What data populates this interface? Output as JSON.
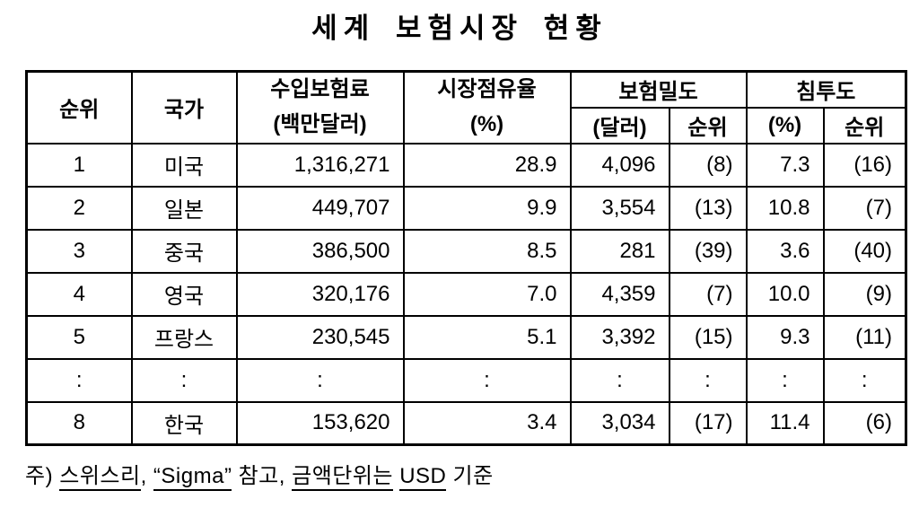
{
  "title": "세계 보험시장 현황",
  "table": {
    "headers": {
      "rank": "순위",
      "country": "국가",
      "premium_line1": "수입보험료",
      "premium_line2": "(백만달러)",
      "share_line1": "시장점유율",
      "share_line2": "(%)",
      "density_group": "보험밀도",
      "density_unit": "(달러)",
      "density_rank": "순위",
      "penetration_group": "침투도",
      "penetration_unit": "(%)",
      "penetration_rank": "순위"
    },
    "rows": [
      {
        "rank": "1",
        "country": "미국",
        "premium": "1,316,271",
        "share": "28.9",
        "density": "4,096",
        "density_rank": "(8)",
        "penetration": "7.3",
        "penetration_rank": "(16)"
      },
      {
        "rank": "2",
        "country": "일본",
        "premium": "449,707",
        "share": "9.9",
        "density": "3,554",
        "density_rank": "(13)",
        "penetration": "10.8",
        "penetration_rank": "(7)"
      },
      {
        "rank": "3",
        "country": "중국",
        "premium": "386,500",
        "share": "8.5",
        "density": "281",
        "density_rank": "(39)",
        "penetration": "3.6",
        "penetration_rank": "(40)"
      },
      {
        "rank": "4",
        "country": "영국",
        "premium": "320,176",
        "share": "7.0",
        "density": "4,359",
        "density_rank": "(7)",
        "penetration": "10.0",
        "penetration_rank": "(9)"
      },
      {
        "rank": "5",
        "country": "프랑스",
        "premium": "230,545",
        "share": "5.1",
        "density": "3,392",
        "density_rank": "(15)",
        "penetration": "9.3",
        "penetration_rank": "(11)"
      },
      {
        "rank": ":",
        "country": ":",
        "premium": ":",
        "share": ":",
        "density": ":",
        "density_rank": ":",
        "penetration": ":",
        "penetration_rank": ":"
      },
      {
        "rank": "8",
        "country": "한국",
        "premium": "153,620",
        "share": "3.4",
        "density": "3,034",
        "density_rank": "(17)",
        "penetration": "11.4",
        "penetration_rank": "(6)"
      }
    ]
  },
  "footnote": {
    "segments": [
      {
        "text": "주) ",
        "underline": false
      },
      {
        "text": "스위스리",
        "underline": true
      },
      {
        "text": ", ",
        "underline": false
      },
      {
        "text": "“Sigma”",
        "underline": true
      },
      {
        "text": " 참고, ",
        "underline": false
      },
      {
        "text": "금액단위는",
        "underline": true
      },
      {
        "text": " ",
        "underline": false
      },
      {
        "text": "USD",
        "underline": true
      },
      {
        "text": " 기준",
        "underline": false
      }
    ]
  }
}
